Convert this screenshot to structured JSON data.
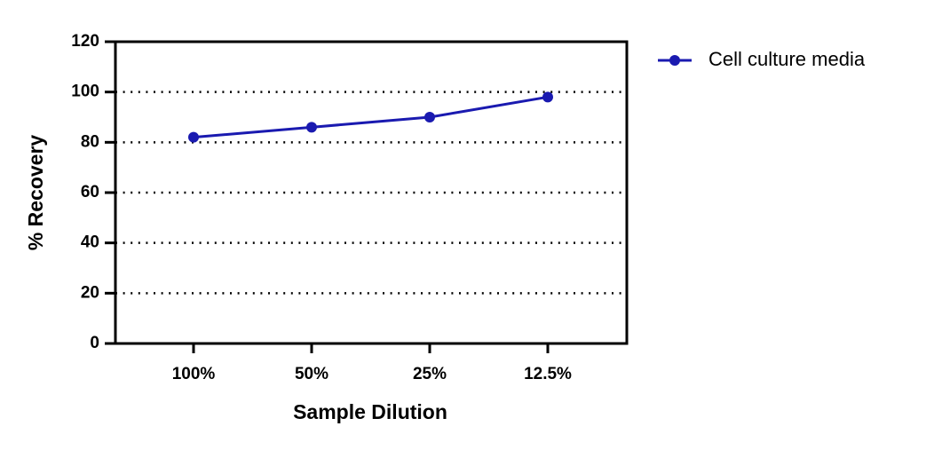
{
  "chart_data": {
    "type": "line",
    "x_label": "Sample Dilution",
    "y_label": "% Recovery",
    "categories": [
      "100%",
      "50%",
      "25%",
      "12.5%"
    ],
    "series": [
      {
        "name": "Cell culture media",
        "color": "#1a1ab0",
        "values": [
          82,
          86,
          90,
          98
        ]
      }
    ],
    "ylim": [
      0,
      120
    ],
    "yticks": [
      0,
      20,
      40,
      60,
      80,
      100,
      120
    ],
    "grid": true
  }
}
